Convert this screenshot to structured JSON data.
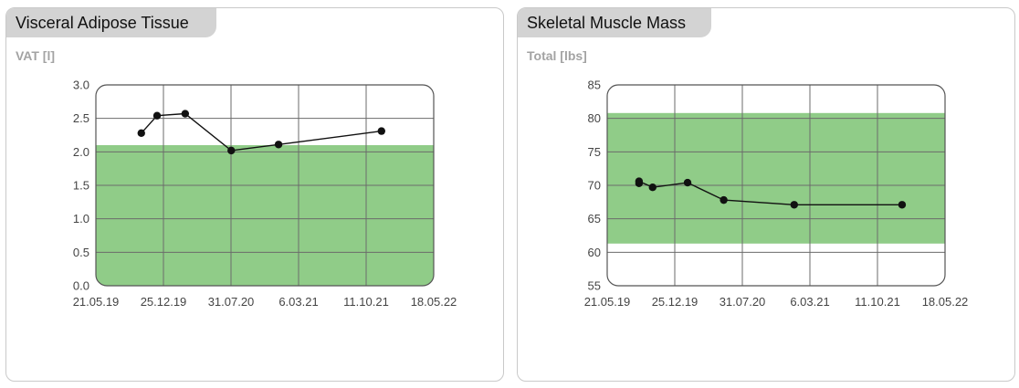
{
  "colors": {
    "band": "#90cc88",
    "grid": "#6b6b6b",
    "line": "#111111",
    "tab_bg": "#d3d3d3"
  },
  "panels": [
    {
      "title": "Visceral Adipose Tissue",
      "metric_label": "VAT [l]"
    },
    {
      "title": "Skeletal Muscle Mass",
      "metric_label": "Total [lbs]"
    }
  ],
  "chart_data": [
    {
      "type": "line",
      "title": "Visceral Adipose Tissue",
      "ylabel": "VAT [l]",
      "ylim": [
        0,
        3
      ],
      "yticks": [
        "0.0",
        "0.5",
        "1.0",
        "1.5",
        "2.0",
        "2.5",
        "3.0"
      ],
      "xlim": [
        "2019-05-21",
        "2022-05-18"
      ],
      "xticks": [
        "21.05.19",
        "25.12.19",
        "31.07.20",
        "6.03.21",
        "11.10.21",
        "18.05.22"
      ],
      "grid": true,
      "reference_band": [
        0,
        2.1
      ],
      "series": [
        {
          "x": [
            "2019-10-15",
            "2019-12-05",
            "2020-03-05",
            "2020-08-01",
            "2021-01-01",
            "2021-11-30"
          ],
          "values": [
            2.28,
            2.54,
            2.57,
            2.02,
            2.11,
            2.31
          ]
        }
      ]
    },
    {
      "type": "line",
      "title": "Skeletal Muscle Mass",
      "ylabel": "Total [lbs]",
      "ylim": [
        55,
        85
      ],
      "yticks": [
        "55",
        "60",
        "65",
        "70",
        "75",
        "80",
        "85"
      ],
      "xlim": [
        "2019-05-21",
        "2022-05-18"
      ],
      "xticks": [
        "21.05.19",
        "25.12.19",
        "31.07.20",
        "6.03.21",
        "11.10.21",
        "18.05.22"
      ],
      "grid": true,
      "reference_band": [
        61.3,
        80.8
      ],
      "series": [
        {
          "x": [
            "2019-09-01",
            "2019-09-01",
            "2019-10-15",
            "2020-02-05",
            "2020-06-01",
            "2021-01-15",
            "2021-12-30"
          ],
          "values": [
            70.3,
            70.6,
            69.7,
            70.4,
            67.8,
            67.1,
            67.1
          ]
        }
      ]
    }
  ]
}
